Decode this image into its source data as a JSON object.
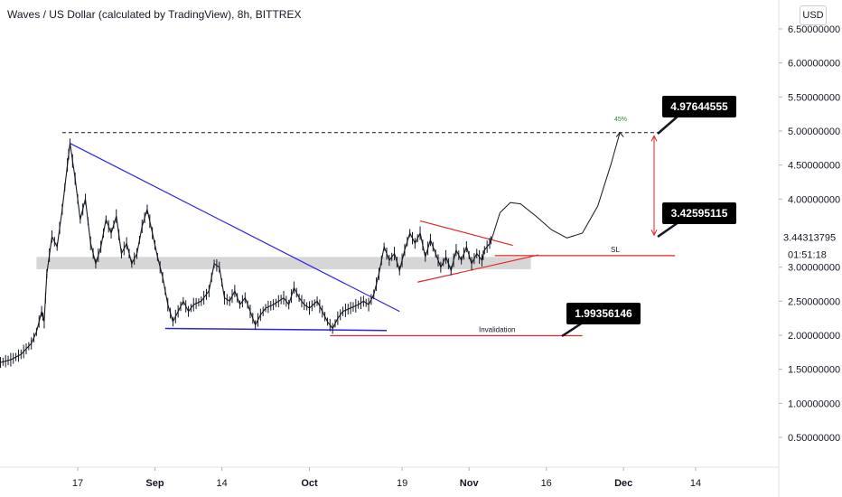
{
  "header": {
    "title": "Waves / US Dollar (calculated by TradingView), 8h, BITTREX",
    "currency_button": "USD"
  },
  "chart_data": {
    "type": "line",
    "title": "Waves / US Dollar (calculated by TradingView), 8h, BITTREX",
    "y_ticks": [
      {
        "v": 6.5,
        "label": "6.50000000"
      },
      {
        "v": 6.0,
        "label": "6.00000000"
      },
      {
        "v": 5.5,
        "label": "5.50000000"
      },
      {
        "v": 5.0,
        "label": "5.00000000"
      },
      {
        "v": 4.5,
        "label": "4.50000000"
      },
      {
        "v": 4.0,
        "label": "4.00000000"
      },
      {
        "v": 3.0,
        "label": "3.00000000"
      },
      {
        "v": 2.5,
        "label": "2.50000000"
      },
      {
        "v": 2.0,
        "label": "2.00000000"
      },
      {
        "v": 1.5,
        "label": "1.50000000"
      },
      {
        "v": 1.0,
        "label": "1.00000000"
      },
      {
        "v": 0.5,
        "label": "0.50000000"
      }
    ],
    "x_ticks": [
      {
        "d": 17,
        "label": "17",
        "bold": false
      },
      {
        "d": 32,
        "label": "Sep",
        "bold": true
      },
      {
        "d": 45,
        "label": "14",
        "bold": false
      },
      {
        "d": 62,
        "label": "Oct",
        "bold": true
      },
      {
        "d": 80,
        "label": "19",
        "bold": false
      },
      {
        "d": 93,
        "label": "Nov",
        "bold": true
      },
      {
        "d": 108,
        "label": "16",
        "bold": false
      },
      {
        "d": 123,
        "label": "Dec",
        "bold": true
      },
      {
        "d": 137,
        "label": "14",
        "bold": false
      }
    ],
    "price_path": [
      [
        0,
        1.55
      ],
      [
        2,
        1.6
      ],
      [
        4,
        1.64
      ],
      [
        6,
        1.72
      ],
      [
        8,
        1.88
      ],
      [
        9,
        2.05
      ],
      [
        10,
        2.35
      ],
      [
        10.5,
        2.2
      ],
      [
        11,
        2.9
      ],
      [
        12,
        3.45
      ],
      [
        13,
        3.3
      ],
      [
        14,
        3.85
      ],
      [
        15,
        4.5
      ],
      [
        15.5,
        4.82
      ],
      [
        16.5,
        4.3
      ],
      [
        17.5,
        3.7
      ],
      [
        18.5,
        4.0
      ],
      [
        19.5,
        3.35
      ],
      [
        20.5,
        3.05
      ],
      [
        21.5,
        3.3
      ],
      [
        22.5,
        3.7
      ],
      [
        23.5,
        3.5
      ],
      [
        24.5,
        3.75
      ],
      [
        25.5,
        3.2
      ],
      [
        26.5,
        3.35
      ],
      [
        27.5,
        3.05
      ],
      [
        28.5,
        3.2
      ],
      [
        29.5,
        3.6
      ],
      [
        30.5,
        3.85
      ],
      [
        31.5,
        3.5
      ],
      [
        32.5,
        3.15
      ],
      [
        33.5,
        2.85
      ],
      [
        34.5,
        2.45
      ],
      [
        35.5,
        2.2
      ],
      [
        36.5,
        2.35
      ],
      [
        37.5,
        2.5
      ],
      [
        38.5,
        2.35
      ],
      [
        39.5,
        2.45
      ],
      [
        41,
        2.5
      ],
      [
        42.5,
        2.65
      ],
      [
        43.5,
        3.05
      ],
      [
        44.5,
        3.0
      ],
      [
        45.5,
        2.55
      ],
      [
        46.5,
        2.5
      ],
      [
        47.5,
        2.65
      ],
      [
        48.5,
        2.45
      ],
      [
        49.5,
        2.55
      ],
      [
        50.5,
        2.35
      ],
      [
        51.5,
        2.15
      ],
      [
        52.5,
        2.3
      ],
      [
        53.5,
        2.4
      ],
      [
        55,
        2.45
      ],
      [
        57,
        2.55
      ],
      [
        58,
        2.45
      ],
      [
        59,
        2.7
      ],
      [
        60,
        2.55
      ],
      [
        61,
        2.45
      ],
      [
        62,
        2.4
      ],
      [
        63.5,
        2.5
      ],
      [
        64.5,
        2.35
      ],
      [
        65.5,
        2.2
      ],
      [
        66.5,
        2.1
      ],
      [
        67.5,
        2.25
      ],
      [
        68.5,
        2.35
      ],
      [
        70,
        2.4
      ],
      [
        71.5,
        2.45
      ],
      [
        72.5,
        2.5
      ],
      [
        73.5,
        2.45
      ],
      [
        74.5,
        2.6
      ],
      [
        75.5,
        2.9
      ],
      [
        76.5,
        3.3
      ],
      [
        77.5,
        3.1
      ],
      [
        78.5,
        3.2
      ],
      [
        79.5,
        2.95
      ],
      [
        80.5,
        3.25
      ],
      [
        81.5,
        3.5
      ],
      [
        82.5,
        3.35
      ],
      [
        83.5,
        3.5
      ],
      [
        84.5,
        3.15
      ],
      [
        85.5,
        3.4
      ],
      [
        86.5,
        3.2
      ],
      [
        87.5,
        3.0
      ],
      [
        88.5,
        3.15
      ],
      [
        89.5,
        2.95
      ],
      [
        90.5,
        3.25
      ],
      [
        91.5,
        3.1
      ],
      [
        92.5,
        3.3
      ],
      [
        93.5,
        3.05
      ],
      [
        94.5,
        3.2
      ],
      [
        95.5,
        3.1
      ],
      [
        96,
        3.25
      ],
      [
        97,
        3.35
      ],
      [
        97.5,
        3.44
      ]
    ],
    "projection_path": [
      [
        97.5,
        3.44
      ],
      [
        99,
        3.8
      ],
      [
        101,
        3.95
      ],
      [
        103,
        3.93
      ],
      [
        106,
        3.75
      ],
      [
        109,
        3.55
      ],
      [
        112,
        3.43
      ],
      [
        115,
        3.5
      ],
      [
        118,
        3.9
      ],
      [
        120.5,
        4.5
      ],
      [
        122.3,
        4.98
      ]
    ],
    "annotations": {
      "target_level": {
        "value": 4.97644555,
        "label": "4.97644555",
        "from_d": 14
      },
      "target_pct": "45%",
      "move_label": "3.42595115",
      "current_price": "3.44313795",
      "countdown": "01:51:18",
      "sl_label": "SL",
      "sl_level": {
        "value": 3.17,
        "from_d": 98,
        "to_d": 133
      },
      "invalidation_label": "Invalidation",
      "invalidation_level": {
        "value": 1.99356146,
        "label": "1.99356146",
        "from_d": 66,
        "to_d": 115
      },
      "support_zone": {
        "low": 2.97,
        "high": 3.15,
        "from_d": 9,
        "to_d": 105
      },
      "descending_trendline": [
        [
          15.5,
          4.82
        ],
        [
          79.5,
          2.35
        ]
      ],
      "horizontal_support": [
        [
          34,
          2.1
        ],
        [
          77,
          2.07
        ]
      ],
      "triangle_upper": [
        [
          83.5,
          3.68
        ],
        [
          101.5,
          3.32
        ]
      ],
      "triangle_lower": [
        [
          83,
          2.78
        ],
        [
          106.5,
          3.18
        ]
      ]
    },
    "colors": {
      "candle": "#131722",
      "trend_blue": "#2b24e6",
      "level_red": "#e32626",
      "zone": "#d1d1d1",
      "target_pct": "#2e8b2e",
      "axis_text": "#131722"
    }
  }
}
